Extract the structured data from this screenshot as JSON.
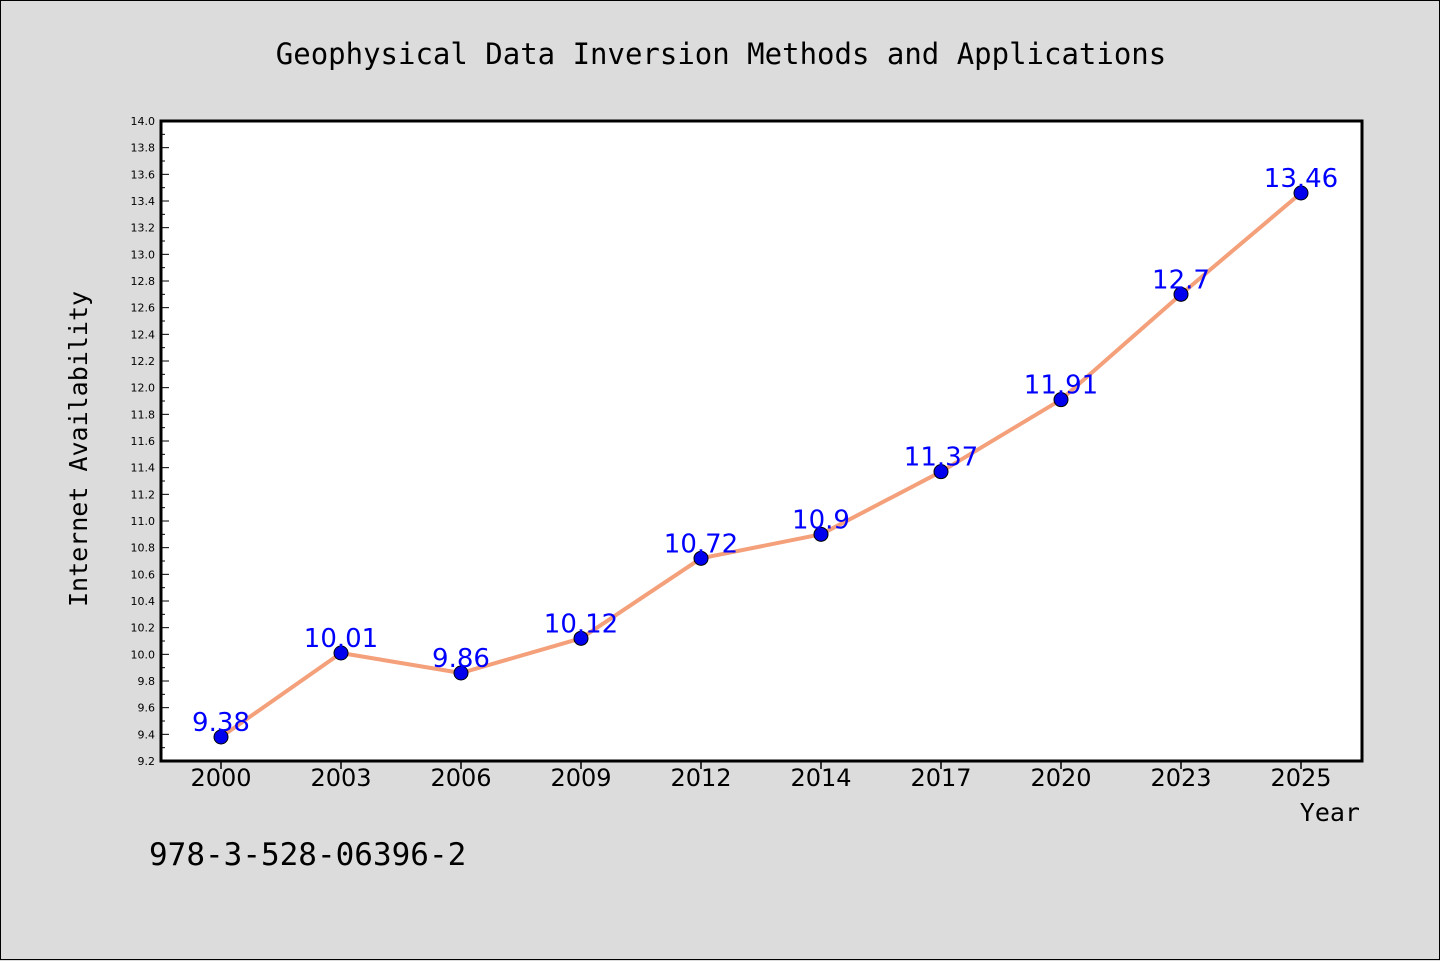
{
  "chart_data": {
    "type": "line",
    "title": "Geophysical Data Inversion Methods and Applications",
    "xlabel": "Year",
    "ylabel": "Internet Availability",
    "categories": [
      "2000",
      "2003",
      "2006",
      "2009",
      "2012",
      "2014",
      "2017",
      "2020",
      "2023",
      "2025"
    ],
    "series": [
      {
        "values": [
          9.38,
          10.01,
          9.86,
          10.12,
          10.72,
          10.9,
          11.37,
          11.91,
          12.7,
          13.46
        ],
        "labels": [
          "9.38",
          "10.01",
          "9.86",
          "10.12",
          "10.72",
          "10.9",
          "11.37",
          "11.91",
          "12.7",
          "13.46"
        ],
        "line_color": "#f4a07a",
        "marker_color": "#0000ee"
      }
    ],
    "ylim": [
      9.2,
      14.0
    ],
    "ytick_step": 0.2,
    "grid": false,
    "legend": "none",
    "annotation": "978-3-528-06396-2"
  },
  "colors": {
    "background": "#dcdcdc",
    "plot_area": "#ffffff",
    "data_label": "#0000ff"
  }
}
